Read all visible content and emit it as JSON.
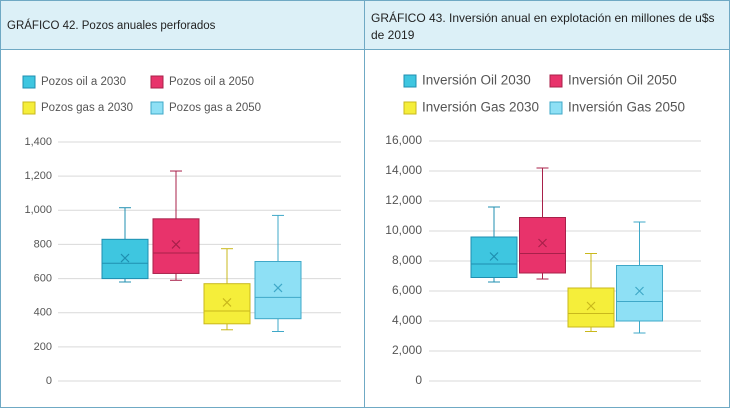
{
  "chart_data": [
    {
      "type": "box",
      "title": "GRÁFICO 42. Pozos anuales perforados",
      "legend": "top",
      "grid": true,
      "ylim": [
        0,
        1400
      ],
      "yticks": [
        0,
        200,
        400,
        600,
        800,
        {
          "value": 1000,
          "label": "1,000"
        },
        {
          "value": 1200,
          "label": "1,200"
        },
        {
          "value": 1400,
          "label": "1,400"
        }
      ],
      "series": [
        {
          "name": "Pozos oil a 2030",
          "color": "#3ec6e0",
          "stroke": "#1f8fb0",
          "min": 580,
          "q1": 600,
          "median": 690,
          "q3": 830,
          "max": 1015,
          "mean": 720
        },
        {
          "name": "Pozos oil a 2050",
          "color": "#e8336b",
          "stroke": "#a8204a",
          "min": 590,
          "q1": 630,
          "median": 750,
          "q3": 950,
          "max": 1230,
          "mean": 800
        },
        {
          "name": "Pozos gas a 2030",
          "color": "#f5ee3a",
          "stroke": "#c9b81c",
          "min": 300,
          "q1": 335,
          "median": 410,
          "q3": 570,
          "max": 775,
          "mean": 460
        },
        {
          "name": "Pozos gas a 2050",
          "color": "#8ee0f5",
          "stroke": "#3fa8c8",
          "min": 290,
          "q1": 365,
          "median": 490,
          "q3": 700,
          "max": 970,
          "mean": 545
        }
      ]
    },
    {
      "type": "box",
      "title": "GRÁFICO 43. Inversión anual en explotación en millones de u$s de 2019",
      "legend": "top",
      "grid": true,
      "ylim": [
        0,
        16000
      ],
      "yticks": [
        0,
        {
          "value": 2000,
          "label": "2,000"
        },
        {
          "value": 4000,
          "label": "4,000"
        },
        {
          "value": 6000,
          "label": "6,000"
        },
        {
          "value": 8000,
          "label": "8,000"
        },
        {
          "value": 10000,
          "label": "10,000"
        },
        {
          "value": 12000,
          "label": "12,000"
        },
        {
          "value": 14000,
          "label": "14,000"
        },
        {
          "value": 16000,
          "label": "16,000"
        }
      ],
      "series": [
        {
          "name": "Inversión Oil 2030",
          "color": "#3ec6e0",
          "stroke": "#1f8fb0",
          "min": 6600,
          "q1": 6900,
          "median": 7800,
          "q3": 9600,
          "max": 11600,
          "mean": 8300
        },
        {
          "name": "Inversión Oil 2050",
          "color": "#e8336b",
          "stroke": "#a8204a",
          "min": 6800,
          "q1": 7200,
          "median": 8500,
          "q3": 10900,
          "max": 14200,
          "mean": 9200
        },
        {
          "name": "Inversión Gas 2030",
          "color": "#f5ee3a",
          "stroke": "#c9b81c",
          "min": 3300,
          "q1": 3600,
          "median": 4500,
          "q3": 6200,
          "max": 8500,
          "mean": 5000
        },
        {
          "name": "Inversión Gas 2050",
          "color": "#8ee0f5",
          "stroke": "#3fa8c8",
          "min": 3200,
          "q1": 4000,
          "median": 5300,
          "q3": 7700,
          "max": 10600,
          "mean": 6000
        }
      ]
    }
  ]
}
